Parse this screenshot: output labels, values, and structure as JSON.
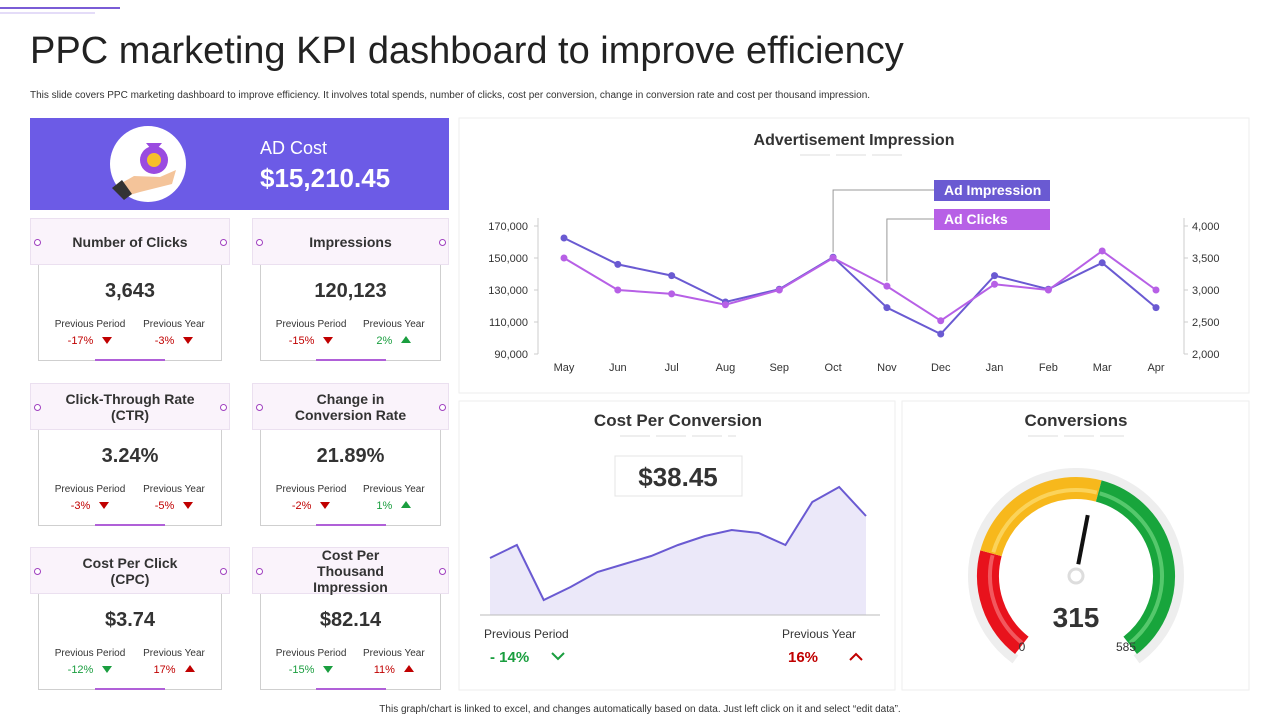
{
  "header": {
    "title": "PPC marketing KPI dashboard to improve efficiency",
    "subtitle": "This slide covers PPC  marketing dashboard to improve efficiency. It involves total spends, number of clicks, cost per conversion, change in conversion rate and cost per thousand impression."
  },
  "ad_cost": {
    "label": "AD Cost",
    "value": "$15,210.45"
  },
  "kpis": [
    {
      "title": "Number of Clicks",
      "value": "3,643",
      "period": {
        "label": "Previous Period",
        "change": "-17%",
        "color": "#c00000"
      },
      "year": {
        "label": "Previous Year",
        "change": "-3%",
        "color": "#c00000"
      }
    },
    {
      "title": "Impressions",
      "value": "120,123",
      "period": {
        "label": "Previous Period",
        "change": "-15%",
        "color": "#c00000"
      },
      "year": {
        "label": "Previous Year",
        "change": "2%",
        "color": "#1a9e3f"
      }
    },
    {
      "title": "Click-Through Rate (CTR)",
      "value": "3.24%",
      "period": {
        "label": "Previous Period",
        "change": "-3%",
        "color": "#c00000"
      },
      "year": {
        "label": "Previous Year",
        "change": "-5%",
        "color": "#c00000"
      }
    },
    {
      "title": "Change in Conversion Rate",
      "value": "21.89%",
      "period": {
        "label": "Previous Period",
        "change": "-2%",
        "color": "#c00000"
      },
      "year": {
        "label": "Previous Year",
        "change": "1%",
        "color": "#1a9e3f"
      }
    },
    {
      "title": "Cost Per Click (CPC)",
      "value": "$3.74",
      "period": {
        "label": "Previous Period",
        "change": "-12%",
        "color": "#1a9e3f"
      },
      "year": {
        "label": "Previous Year",
        "change": "17%",
        "color": "#c00000"
      }
    },
    {
      "title": "Cost Per Thousand Impression",
      "value": "$82.14",
      "period": {
        "label": "Previous Period",
        "change": "-15%",
        "color": "#1a9e3f"
      },
      "year": {
        "label": "Previous Year",
        "change": "11%",
        "color": "#c00000"
      }
    }
  ],
  "chart_data": [
    {
      "type": "line",
      "title": "Advertisement Impression",
      "categories": [
        "May",
        "Jun",
        "Jul",
        "Aug",
        "Sep",
        "Oct",
        "Nov",
        "Dec",
        "Jan",
        "Feb",
        "Mar",
        "Apr"
      ],
      "series": [
        {
          "name": "Ad Impression",
          "color": "#6a5ad2",
          "values": [
            162500,
            146000,
            139000,
            122500,
            130500,
            150500,
            119000,
            102500,
            139000,
            130500,
            147000,
            119000
          ]
        },
        {
          "name": "Ad Clicks",
          "color": "#b760e6",
          "axis": "y2",
          "values": [
            3500,
            3000,
            2940,
            2770,
            3000,
            3500,
            3060,
            2520,
            3090,
            3000,
            3610,
            3000
          ]
        }
      ],
      "ylim": [
        90000,
        170000
      ],
      "yticks": [
        {
          "value": 90000,
          "label": "90,000"
        },
        {
          "value": 110000,
          "label": "110,000"
        },
        {
          "value": 130000,
          "label": "130,000"
        },
        {
          "value": 150000,
          "label": "150,000"
        },
        {
          "value": 170000,
          "label": "170,000"
        }
      ],
      "y2lim": [
        2000,
        4000
      ],
      "y2ticks": [
        {
          "value": 2000,
          "label": "2,000"
        },
        {
          "value": 2500,
          "label": "2,500"
        },
        {
          "value": 3000,
          "label": "3,000"
        },
        {
          "value": 3500,
          "label": "3,500"
        },
        {
          "value": 4000,
          "label": "4,000"
        }
      ]
    },
    {
      "type": "area",
      "title": "Cost Per Conversion",
      "highlight": "$38.45",
      "values": [
        57,
        70,
        15,
        28,
        43,
        51,
        59,
        70,
        79,
        85,
        82,
        70,
        113,
        128,
        99
      ],
      "ylim": [
        0,
        140
      ],
      "color": "#6a5ad2",
      "fill": "#ebe8f9",
      "period": {
        "label": "Previous Period",
        "change": "- 14%",
        "color": "#1a9e3f"
      },
      "year": {
        "label": "Previous Year",
        "change": "16%",
        "color": "#c00000"
      }
    },
    {
      "type": "gauge",
      "title": "Conversions",
      "value": 315,
      "min": 0,
      "max": 585
    }
  ],
  "footer": "This graph/chart is linked to excel, and changes automatically based on data. Just left click on it and select “edit data”."
}
